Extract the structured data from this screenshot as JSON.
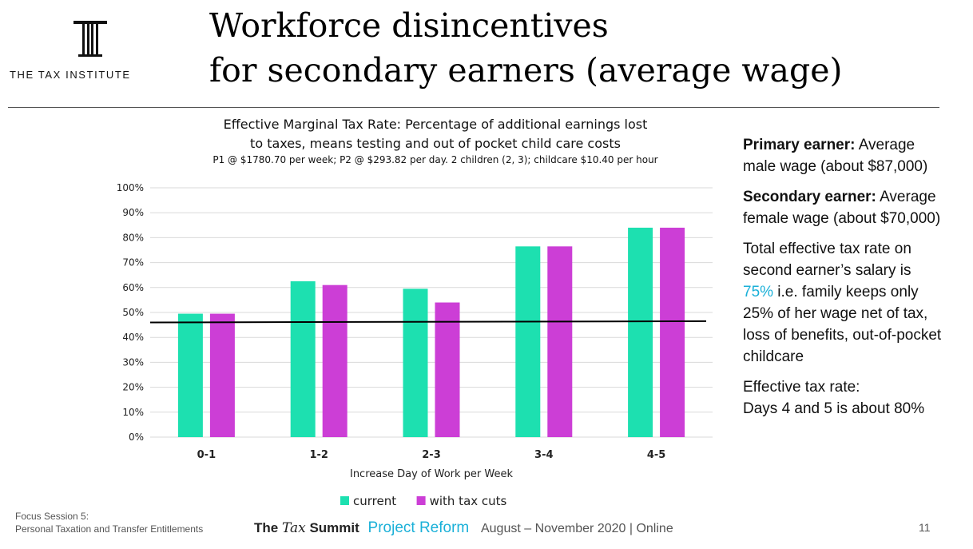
{
  "header": {
    "logo_text": "THE TAX INSTITUTE",
    "title_line1": "Workforce disincentives",
    "title_line2": "for secondary earners (average wage)"
  },
  "colors": {
    "current": "#1de0b0",
    "with_tax_cuts": "#cc3ed6",
    "accent": "#1ab0d8",
    "reference_line": "#000000"
  },
  "chart_data": {
    "type": "bar",
    "title_line1": "Effective Marginal Tax Rate: Percentage of additional earnings lost",
    "title_line2": "to taxes, means testing and out of pocket child care costs",
    "subtitle": "P1 @ $1780.70 per week; P2 @ $293.82 per day. 2 children (2, 3); childcare $10.40 per hour",
    "xlabel": "Increase Day of Work per Week",
    "ylabel": "",
    "categories": [
      "0-1",
      "1-2",
      "2-3",
      "3-4",
      "4-5"
    ],
    "series": [
      {
        "name": "current",
        "values": [
          49.5,
          62.5,
          59.5,
          76.5,
          84
        ]
      },
      {
        "name": "with tax cuts",
        "values": [
          49.5,
          61,
          54,
          76.5,
          84
        ]
      }
    ],
    "ylim": [
      0,
      100
    ],
    "yticks": [
      "0%",
      "10%",
      "20%",
      "30%",
      "40%",
      "50%",
      "60%",
      "70%",
      "80%",
      "90%",
      "100%"
    ],
    "reference_line": {
      "start": 46,
      "end": 46.5
    },
    "grid": true,
    "legend_position": "bottom"
  },
  "side_panel": {
    "primary_label": "Primary earner:",
    "primary_text_1": " Average",
    "primary_text_2": "male wage (about $87,000)",
    "secondary_label": "Secondary earner:",
    "secondary_text_1": " Average",
    "secondary_text_2": "female wage (about $70,000)",
    "total_line1": "Total effective tax rate on",
    "total_line2": "second earner’s salary is",
    "total_highlight": "75%",
    "total_line3_rest": " i.e. family keeps only",
    "total_line4": "25% of her wage net of tax,",
    "total_line5": "loss of benefits, out-of-pocket",
    "total_line6": "childcare",
    "effective_line1": "Effective tax rate:",
    "effective_line2": "Days 4 and 5 is about 80%"
  },
  "footer": {
    "session_line1": "Focus Session 5:",
    "session_line2": "Personal Taxation and Transfer Entitlements",
    "brand_the": "The",
    "brand_tax": "Tax",
    "brand_summit": "Summit",
    "brand_project": "Project Reform",
    "brand_dates": "August – November 2020 | Online",
    "page_number": "11"
  }
}
